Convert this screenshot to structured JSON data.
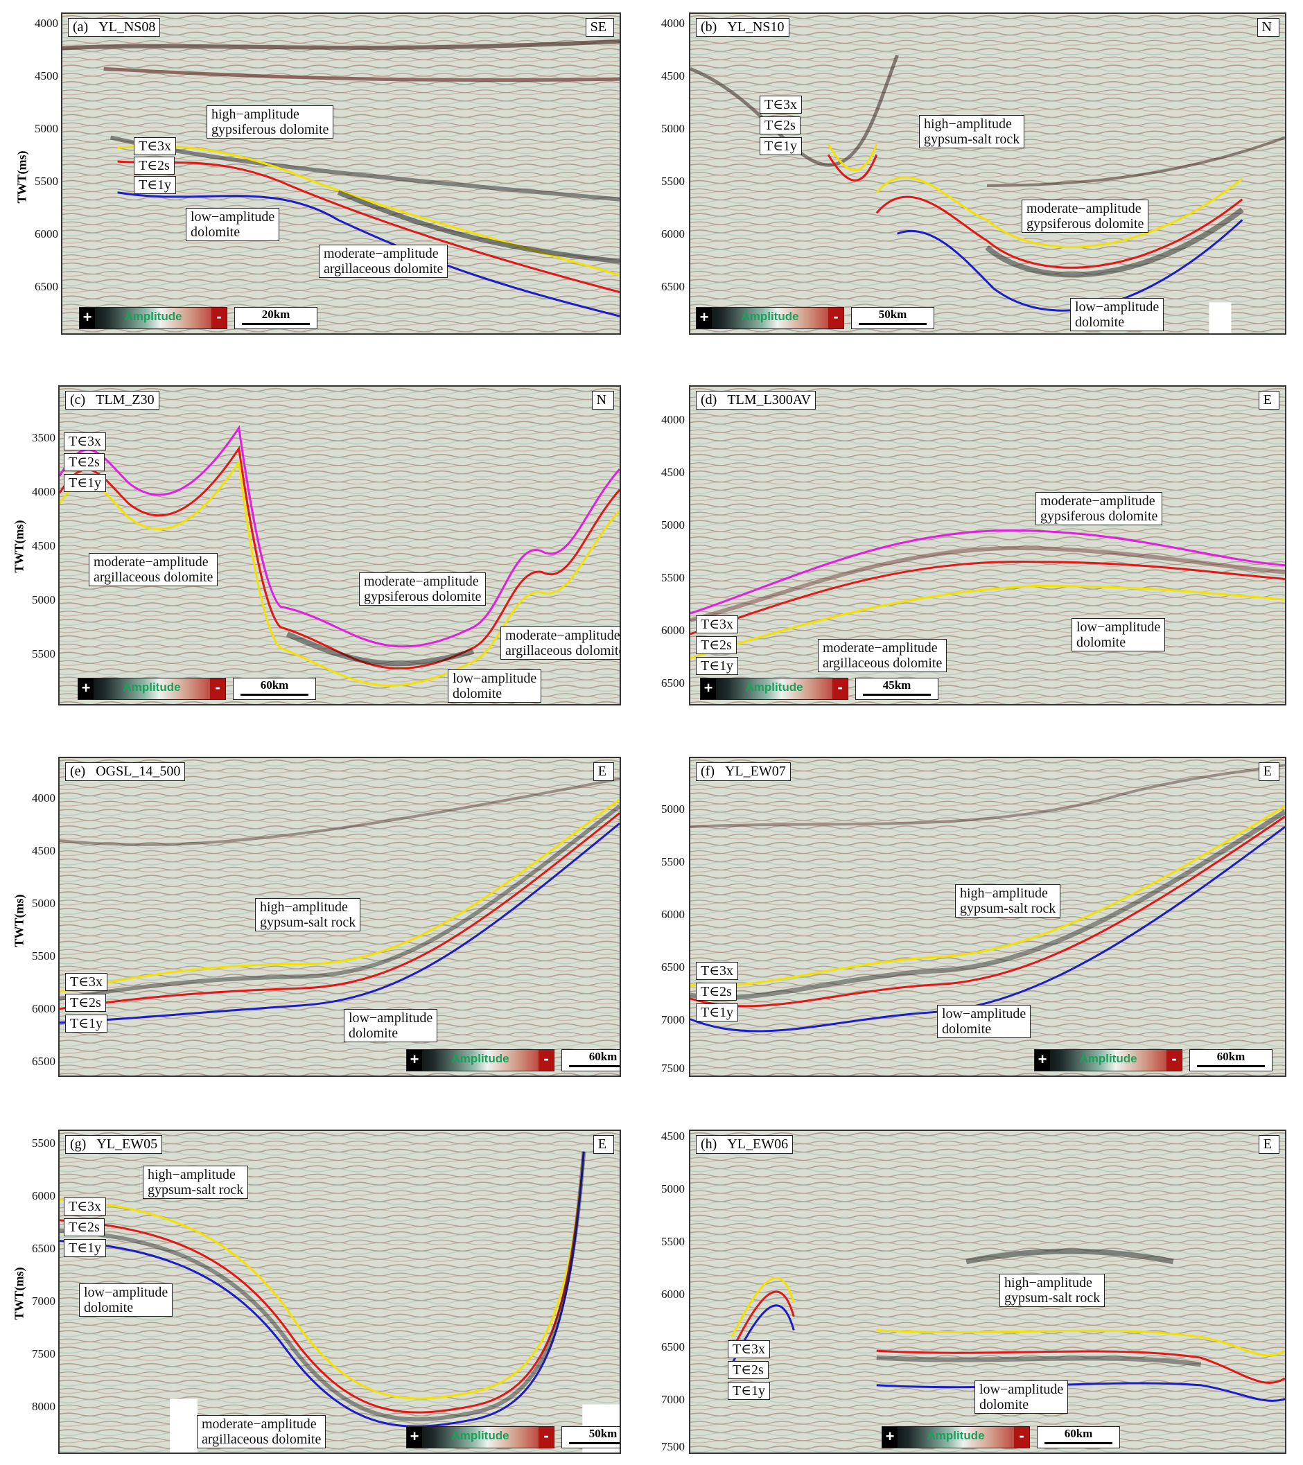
{
  "panels": {
    "a": {
      "label": "(a)",
      "line": "YL_NS08",
      "dir": "SE",
      "scale": "20km",
      "ylabel": "TWT(ms)",
      "ticks": [
        "4000",
        "4500",
        "5000",
        "5500",
        "6000",
        "6500"
      ],
      "horizons": [
        "T∈3x",
        "T∈2s",
        "T∈1y"
      ],
      "notes": [
        "high−amplitude\ngypsiferous dolomite",
        "low−amplitude\ndolomite",
        "moderate−amplitude\nargillaceous dolomite"
      ]
    },
    "b": {
      "label": "(b)",
      "line": "YL_NS10",
      "dir": "N",
      "scale": "50km",
      "ticks": [
        "4000",
        "4500",
        "5000",
        "5500",
        "6000",
        "6500"
      ],
      "horizons": [
        "T∈3x",
        "T∈2s",
        "T∈1y"
      ],
      "notes": [
        "high−amplitude\ngypsum-salt rock",
        "moderate−amplitude\ngypsiferous dolomite",
        "low−amplitude\ndolomite"
      ]
    },
    "c": {
      "label": "(c)",
      "line": "TLM_Z30",
      "dir": "N",
      "scale": "60km",
      "ylabel": "TWT(ms)",
      "ticks": [
        "3500",
        "4000",
        "4500",
        "5000",
        "5500"
      ],
      "horizons": [
        "T∈3x",
        "T∈2s",
        "T∈1y"
      ],
      "notes": [
        "moderate−amplitude\nargillaceous dolomite",
        "moderate−amplitude\ngypsiferous dolomite",
        "moderate−amplitude\nargillaceous dolomite",
        "low−amplitude\ndolomite"
      ]
    },
    "d": {
      "label": "(d)",
      "line": "TLM_L300AV",
      "dir": "E",
      "scale": "45km",
      "ticks": [
        "4000",
        "4500",
        "5000",
        "5500",
        "6000",
        "6500"
      ],
      "horizons": [
        "T∈3x",
        "T∈2s",
        "T∈1y"
      ],
      "notes": [
        "moderate−amplitude\ngypsiferous dolomite",
        "moderate−amplitude\nargillaceous dolomite",
        "low−amplitude\ndolomite"
      ]
    },
    "e": {
      "label": "(e)",
      "line": "OGSL_14_500",
      "dir": "E",
      "scale": "60km",
      "ylabel": "TWT(ms)",
      "ticks": [
        "4000",
        "4500",
        "5000",
        "5500",
        "6000",
        "6500"
      ],
      "horizons": [
        "T∈3x",
        "T∈2s",
        "T∈1y"
      ],
      "notes": [
        "high−amplitude\ngypsum-salt rock",
        "low−amplitude\ndolomite"
      ]
    },
    "f": {
      "label": "(f)",
      "line": "YL_EW07",
      "dir": "E",
      "scale": "60km",
      "ticks": [
        "5000",
        "5500",
        "6000",
        "6500",
        "7000",
        "7500"
      ],
      "horizons": [
        "T∈3x",
        "T∈2s",
        "T∈1y"
      ],
      "notes": [
        "high−amplitude\ngypsum-salt rock",
        "low−amplitude\ndolomite"
      ]
    },
    "g": {
      "label": "(g)",
      "line": "YL_EW05",
      "dir": "E",
      "scale": "50km",
      "ylabel": "TWT(ms)",
      "ticks": [
        "5500",
        "6000",
        "6500",
        "7000",
        "7500",
        "8000"
      ],
      "horizons": [
        "T∈3x",
        "T∈2s",
        "T∈1y"
      ],
      "notes": [
        "high−amplitude\ngypsum-salt rock",
        "low−amplitude\ndolomite",
        "moderate−amplitude\nargillaceous dolomite"
      ]
    },
    "h": {
      "label": "(h)",
      "line": "YL_EW06",
      "dir": "E",
      "scale": "60km",
      "ticks": [
        "4500",
        "5000",
        "5500",
        "6000",
        "6500",
        "7000",
        "7500"
      ],
      "horizons": [
        "T∈3x",
        "T∈2s",
        "T∈1y"
      ],
      "notes": [
        "high−amplitude\ngypsum-salt rock",
        "low−amplitude\ndolomite"
      ]
    }
  },
  "legend": {
    "plus": "+",
    "word": "Amplitude",
    "minus": "-"
  },
  "colors": {
    "yellow": "#f2e200",
    "red": "#e01818",
    "blue": "#1c1cc8",
    "magenta": "#e020e0"
  }
}
